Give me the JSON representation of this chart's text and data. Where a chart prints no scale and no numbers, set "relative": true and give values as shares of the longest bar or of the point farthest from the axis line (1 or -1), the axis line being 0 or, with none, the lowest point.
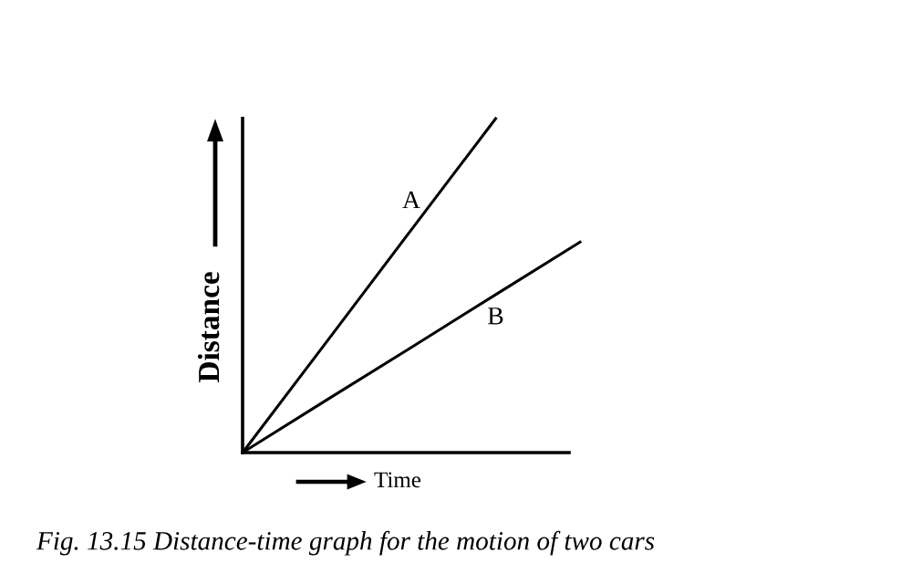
{
  "chart_data": {
    "type": "line",
    "relative": true,
    "xlabel": "Time",
    "ylabel": "Distance",
    "categories": [
      null,
      null,
      null,
      null,
      null
    ],
    "series": [
      {
        "name": "A",
        "color": "#000000",
        "values": [
          0,
          0.333,
          0.667,
          1,
          null
        ]
      },
      {
        "name": "B",
        "color": "#000000",
        "values": [
          0,
          0.158,
          0.315,
          0.473,
          0.63
        ]
      }
    ],
    "annotations": [
      "Fig. 13.15 Distance-time graph for the motion of two cars"
    ],
    "legend": false,
    "marker": "none",
    "line_style": "solid"
  }
}
